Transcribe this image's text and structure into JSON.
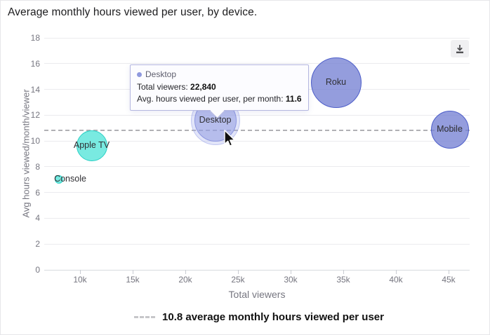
{
  "chart_data": {
    "type": "scatter",
    "title": "Average monthly hours viewed per user, by device.",
    "xlabel": "Total viewers",
    "ylabel": "Avg hours viewed/month/viewer",
    "x_axis": {
      "min": 6600,
      "max": 47000,
      "ticks": [
        {
          "value": 10000,
          "label": "10k"
        },
        {
          "value": 15000,
          "label": "15k"
        },
        {
          "value": 20000,
          "label": "20k"
        },
        {
          "value": 25000,
          "label": "25k"
        },
        {
          "value": 30000,
          "label": "30k"
        },
        {
          "value": 35000,
          "label": "35k"
        },
        {
          "value": 40000,
          "label": "40k"
        },
        {
          "value": 45000,
          "label": "45k"
        }
      ]
    },
    "y_axis": {
      "min": 0,
      "max": 18,
      "ticks": [
        0,
        2,
        4,
        6,
        8,
        10,
        12,
        14,
        16,
        18
      ]
    },
    "bubbles": [
      {
        "label": "Console",
        "total_viewers": 8000,
        "avg_hours_per_month": 7.0,
        "radius": 6,
        "color_key": "teal",
        "label_dx": 16
      },
      {
        "label": "Apple TV",
        "total_viewers": 11100,
        "avg_hours_per_month": 9.6,
        "radius": 22,
        "color_key": "teal",
        "label_dx": 0
      },
      {
        "label": "Mobile",
        "total_viewers": 45100,
        "avg_hours_per_month": 10.9,
        "radius": 27,
        "color_key": "purple",
        "label_dx": 0
      },
      {
        "label": "Roku",
        "total_viewers": 34300,
        "avg_hours_per_month": 14.5,
        "radius": 36,
        "color_key": "purple",
        "label_dx": 0
      },
      {
        "label": "Desktop",
        "total_viewers": 22840,
        "avg_hours_per_month": 11.6,
        "radius": 30,
        "color_key": "purple",
        "label_dx": 0,
        "hovered": true
      }
    ],
    "reference_line": {
      "value": 10.8
    },
    "legend": {
      "label": "10.8 average monthly hours viewed per user"
    },
    "grid": true,
    "legend_position": "bottom-center"
  },
  "tooltip": {
    "series_label": "Desktop",
    "line1_label": "Total viewers: ",
    "line1_value": "22,840",
    "line2_label": "Avg. hours viewed per user, per month: ",
    "line2_value": "11.6"
  },
  "colors": {
    "purple_fill": "#8f99de",
    "purple_stroke": "#4d5ec9",
    "teal_fill": "#5ce5da",
    "teal_stroke": "#2ad0c5",
    "reference_line": "#b1b1b5",
    "grid": "#ebebee",
    "axis_text": "#767680",
    "tooltip_border": "#b4b7e0"
  }
}
